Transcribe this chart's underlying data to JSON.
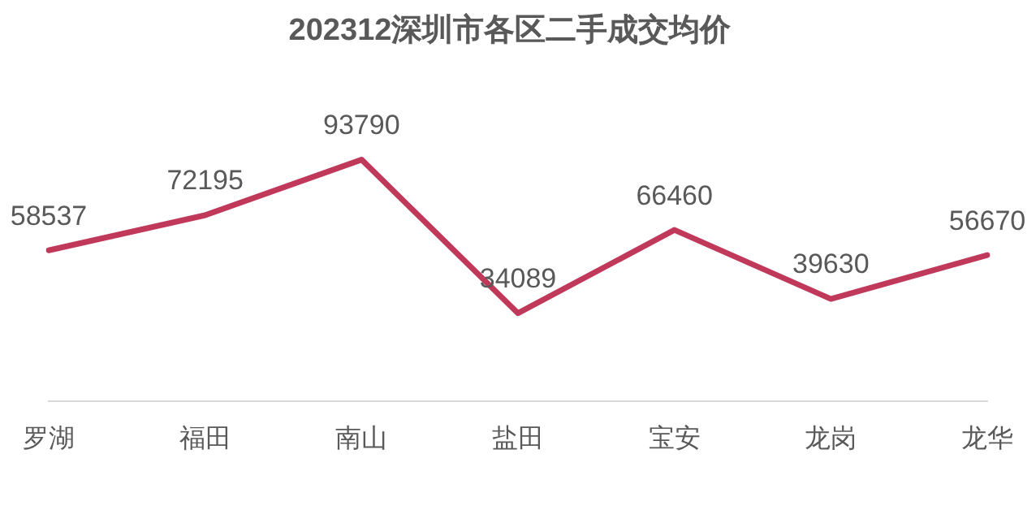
{
  "chart_data": {
    "type": "line",
    "title": "202312深圳市各区二手成交均价",
    "categories": [
      "罗湖",
      "福田",
      "南山",
      "盐田",
      "宝安",
      "龙岗",
      "龙华"
    ],
    "series": [
      {
        "color": "#c0395a",
        "values": [
          58537,
          72195,
          93790,
          34089,
          66460,
          39630,
          56670
        ]
      }
    ],
    "tick_labels": "x",
    "grid": false,
    "legend": false,
    "marker": "none",
    "line_style": "solid",
    "data_labels": true
  }
}
